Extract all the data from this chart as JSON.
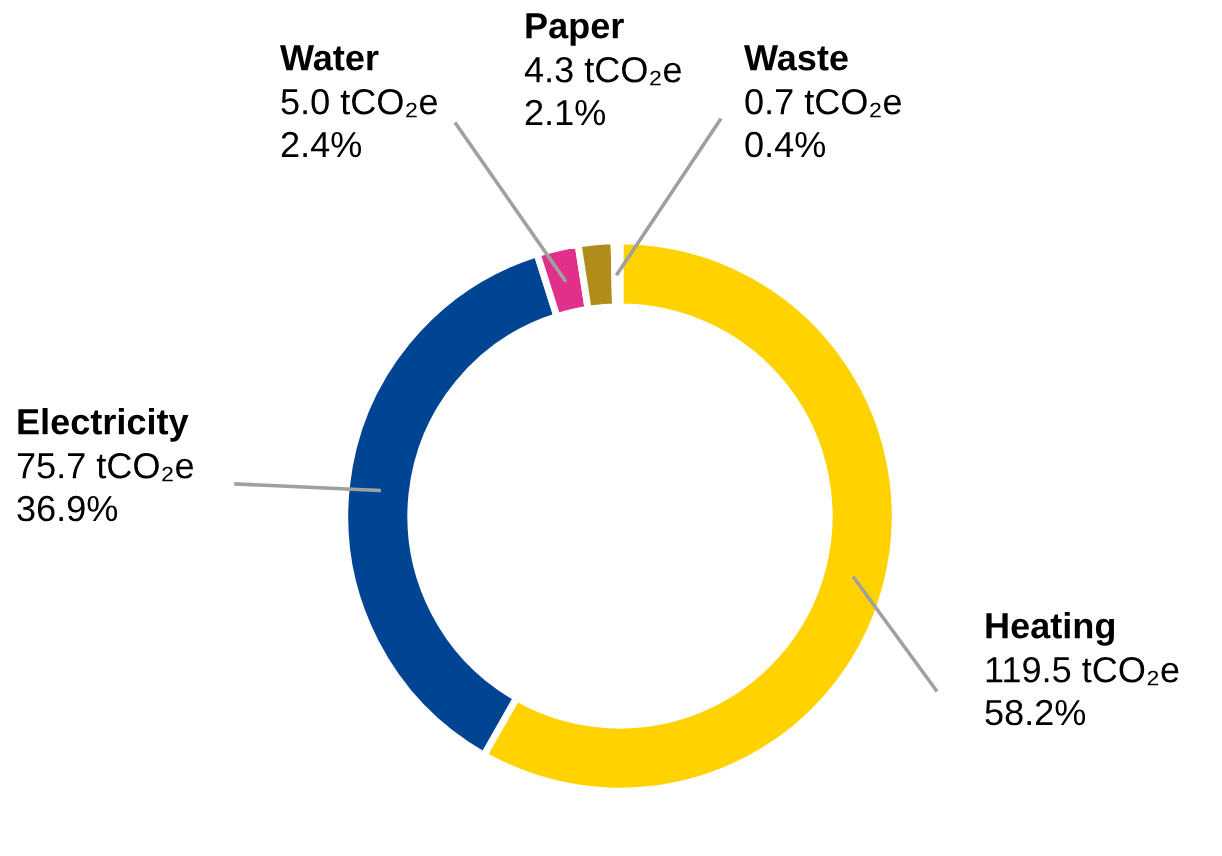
{
  "chart_data": {
    "type": "donut",
    "categories": [
      "Heating",
      "Electricity",
      "Water",
      "Paper",
      "Waste"
    ],
    "values": [
      119.5,
      75.7,
      5.0,
      4.3,
      0.7
    ],
    "colors": [
      "#ffd200",
      "#004494",
      "#e0308a",
      "#b08d1a",
      "#f4f4f4"
    ],
    "value_labels": [
      "119.5 tCO₂e\n58.2%",
      "75.7 tCO₂e\n36.9%",
      "5.0 tCO₂e\n2.4%",
      "4.3 tCO₂e\n2.1%",
      "0.7 tCO₂e\n0.4%"
    ],
    "legend": false
  }
}
